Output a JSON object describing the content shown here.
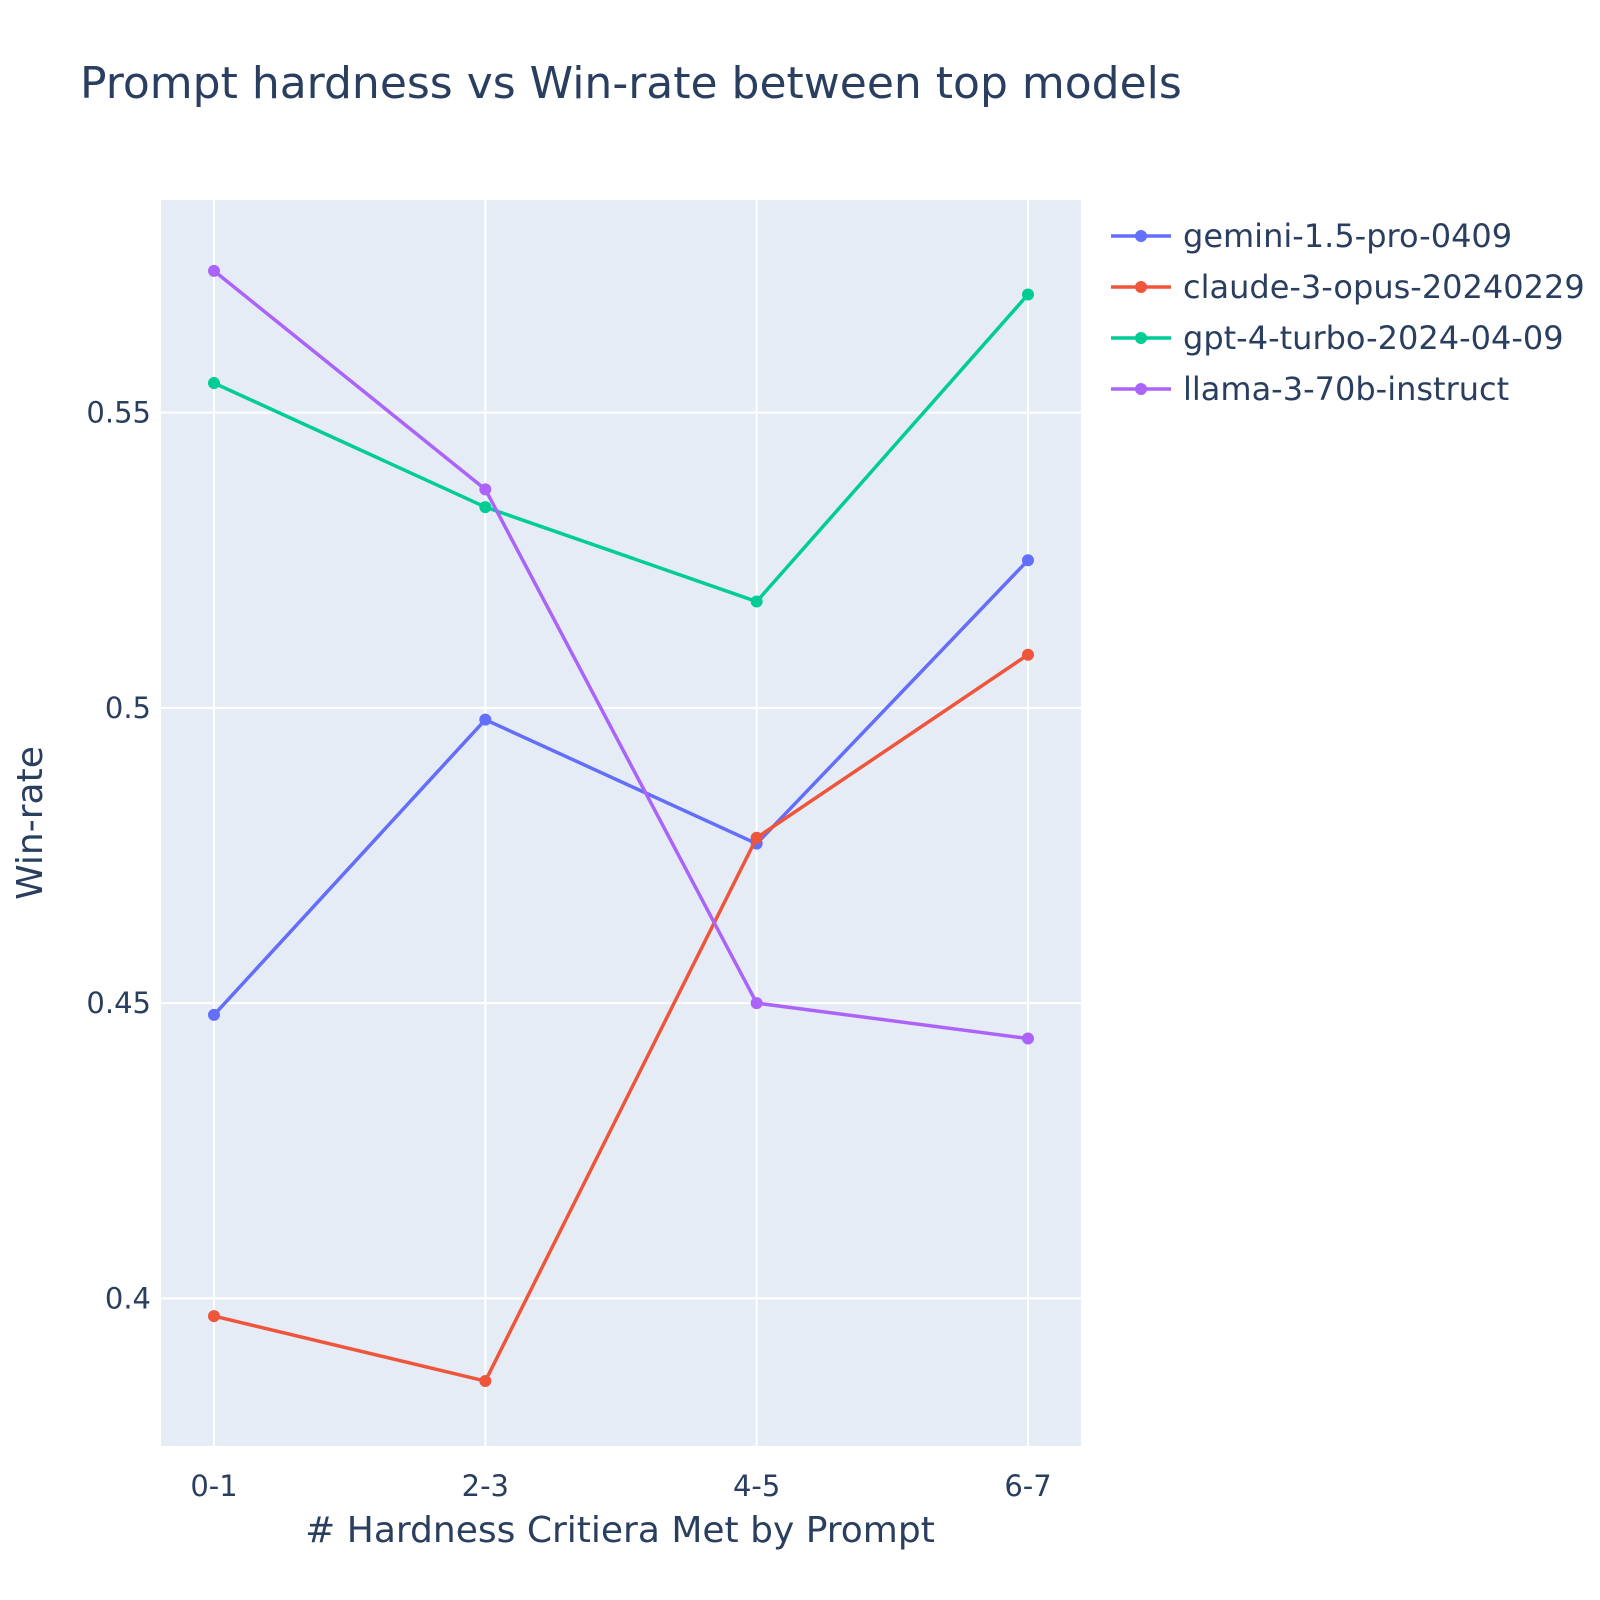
{
  "chart_data": {
    "type": "line",
    "title": "Prompt hardness vs Win-rate between top models",
    "xlabel": "# Hardness Critiera Met by Prompt",
    "ylabel": "Win-rate",
    "categories": [
      "0-1",
      "2-3",
      "4-5",
      "6-7"
    ],
    "ylim": [
      0.375,
      0.586
    ],
    "yticks": [
      0.4,
      0.45,
      0.5,
      0.55
    ],
    "ytick_labels": [
      "0.4",
      "0.45",
      "0.5",
      "0.55"
    ],
    "grid": true,
    "legend_position": "top-right, outside plot",
    "series": [
      {
        "name": "gemini-1.5-pro-0409",
        "color": "#636efa",
        "values": [
          0.448,
          0.498,
          0.477,
          0.525
        ]
      },
      {
        "name": "claude-3-opus-20240229",
        "color": "#ef553b",
        "values": [
          0.397,
          0.386,
          0.478,
          0.509
        ]
      },
      {
        "name": "gpt-4-turbo-2024-04-09",
        "color": "#00cc96",
        "values": [
          0.555,
          0.534,
          0.518,
          0.57
        ]
      },
      {
        "name": "llama-3-70b-instruct",
        "color": "#ab63fa",
        "values": [
          0.574,
          0.537,
          0.45,
          0.444
        ]
      }
    ],
    "plot_background": "#e5ecf6",
    "grid_color": "#ffffff"
  }
}
